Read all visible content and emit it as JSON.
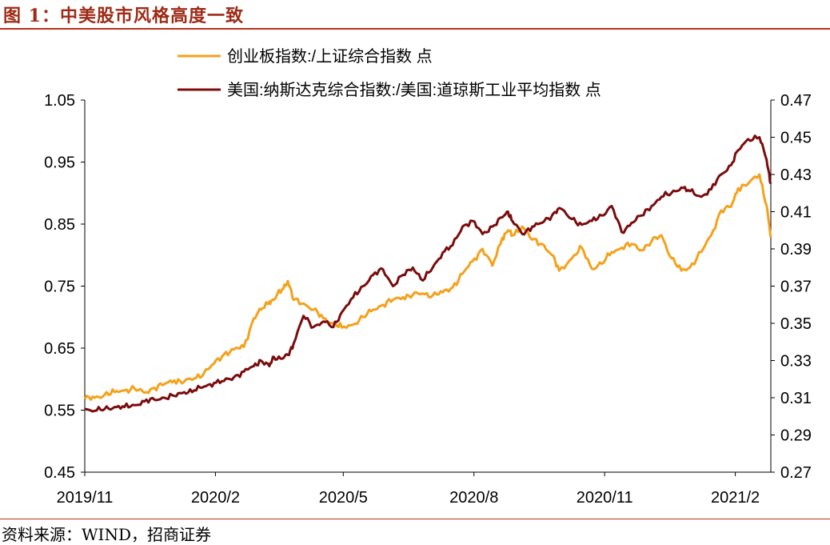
{
  "figure": {
    "title": "图 1：中美股市风格高度一致",
    "source": "资料来源：WIND，招商证券"
  },
  "colors": {
    "series1": "#f5a11b",
    "series2": "#7b0c0c",
    "accent": "#b8321c"
  },
  "chart_data": {
    "type": "line",
    "x_ticks": [
      "2019/11",
      "2020/2",
      "2020/5",
      "2020/8",
      "2020/11",
      "2021/2"
    ],
    "xlim": [
      "2019-11-01",
      "2021-02-26"
    ],
    "left_axis": {
      "ylim": [
        0.45,
        1.05
      ],
      "ticks": [
        "0.45",
        "0.55",
        "0.65",
        "0.75",
        "0.85",
        "0.95",
        "1.05"
      ]
    },
    "right_axis": {
      "ylim": [
        0.27,
        0.47
      ],
      "ticks": [
        "0.27",
        "0.29",
        "0.31",
        "0.33",
        "0.35",
        "0.37",
        "0.39",
        "0.41",
        "0.43",
        "0.45",
        "0.47"
      ]
    },
    "legend_placement": "top-left",
    "grid": false,
    "series": [
      {
        "name": "创业板指数:/上证综合指数 点",
        "axis": "left",
        "points": [
          [
            "2019-11-01",
            0.568
          ],
          [
            "2019-11-08",
            0.57
          ],
          [
            "2019-11-15",
            0.575
          ],
          [
            "2019-11-22",
            0.579
          ],
          [
            "2019-11-29",
            0.582
          ],
          [
            "2019-12-06",
            0.585
          ],
          [
            "2019-12-13",
            0.578
          ],
          [
            "2019-12-20",
            0.586
          ],
          [
            "2019-12-27",
            0.592
          ],
          [
            "2020-01-03",
            0.598
          ],
          [
            "2020-01-10",
            0.596
          ],
          [
            "2020-01-17",
            0.601
          ],
          [
            "2020-01-24",
            0.61
          ],
          [
            "2020-01-31",
            0.625
          ],
          [
            "2020-02-07",
            0.64
          ],
          [
            "2020-02-14",
            0.648
          ],
          [
            "2020-02-21",
            0.652
          ],
          [
            "2020-02-28",
            0.698
          ],
          [
            "2020-03-04",
            0.712
          ],
          [
            "2020-03-10",
            0.725
          ],
          [
            "2020-03-13",
            0.728
          ],
          [
            "2020-03-19",
            0.745
          ],
          [
            "2020-03-23",
            0.758
          ],
          [
            "2020-03-27",
            0.728
          ],
          [
            "2020-04-03",
            0.722
          ],
          [
            "2020-04-10",
            0.712
          ],
          [
            "2020-04-17",
            0.698
          ],
          [
            "2020-04-24",
            0.69
          ],
          [
            "2020-04-30",
            0.683
          ],
          [
            "2020-05-08",
            0.688
          ],
          [
            "2020-05-15",
            0.7
          ],
          [
            "2020-05-22",
            0.712
          ],
          [
            "2020-05-29",
            0.72
          ],
          [
            "2020-06-05",
            0.728
          ],
          [
            "2020-06-12",
            0.732
          ],
          [
            "2020-06-19",
            0.736
          ],
          [
            "2020-06-26",
            0.738
          ],
          [
            "2020-07-03",
            0.735
          ],
          [
            "2020-07-10",
            0.74
          ],
          [
            "2020-07-17",
            0.748
          ],
          [
            "2020-07-24",
            0.77
          ],
          [
            "2020-07-31",
            0.79
          ],
          [
            "2020-08-07",
            0.81
          ],
          [
            "2020-08-14",
            0.783
          ],
          [
            "2020-08-21",
            0.828
          ],
          [
            "2020-08-25",
            0.84
          ],
          [
            "2020-08-28",
            0.832
          ],
          [
            "2020-09-04",
            0.846
          ],
          [
            "2020-09-11",
            0.825
          ],
          [
            "2020-09-18",
            0.818
          ],
          [
            "2020-09-25",
            0.8
          ],
          [
            "2020-09-30",
            0.775
          ],
          [
            "2020-10-09",
            0.795
          ],
          [
            "2020-10-16",
            0.812
          ],
          [
            "2020-10-23",
            0.778
          ],
          [
            "2020-10-30",
            0.786
          ],
          [
            "2020-11-06",
            0.805
          ],
          [
            "2020-11-13",
            0.812
          ],
          [
            "2020-11-20",
            0.818
          ],
          [
            "2020-11-27",
            0.808
          ],
          [
            "2020-12-04",
            0.822
          ],
          [
            "2020-12-11",
            0.832
          ],
          [
            "2020-12-18",
            0.795
          ],
          [
            "2020-12-25",
            0.775
          ],
          [
            "2020-12-31",
            0.78
          ],
          [
            "2021-01-08",
            0.805
          ],
          [
            "2021-01-15",
            0.832
          ],
          [
            "2021-01-22",
            0.872
          ],
          [
            "2021-01-29",
            0.878
          ],
          [
            "2021-02-03",
            0.908
          ],
          [
            "2021-02-10",
            0.915
          ],
          [
            "2021-02-18",
            0.93
          ],
          [
            "2021-02-23",
            0.88
          ],
          [
            "2021-02-26",
            0.828
          ]
        ]
      },
      {
        "name": "美国:纳斯达克综合指数:/美国:道琼斯工业平均指数 点",
        "axis": "right",
        "points": [
          [
            "2019-11-01",
            0.304
          ],
          [
            "2019-11-08",
            0.303
          ],
          [
            "2019-11-15",
            0.304
          ],
          [
            "2019-11-22",
            0.305
          ],
          [
            "2019-11-29",
            0.305
          ],
          [
            "2019-12-06",
            0.306
          ],
          [
            "2019-12-13",
            0.308
          ],
          [
            "2019-12-20",
            0.309
          ],
          [
            "2019-12-27",
            0.31
          ],
          [
            "2020-01-03",
            0.311
          ],
          [
            "2020-01-10",
            0.313
          ],
          [
            "2020-01-17",
            0.314
          ],
          [
            "2020-01-24",
            0.316
          ],
          [
            "2020-01-31",
            0.318
          ],
          [
            "2020-02-07",
            0.319
          ],
          [
            "2020-02-14",
            0.321
          ],
          [
            "2020-02-21",
            0.324
          ],
          [
            "2020-02-28",
            0.327
          ],
          [
            "2020-03-04",
            0.33
          ],
          [
            "2020-03-10",
            0.327
          ],
          [
            "2020-03-13",
            0.332
          ],
          [
            "2020-03-19",
            0.331
          ],
          [
            "2020-03-23",
            0.333
          ],
          [
            "2020-03-27",
            0.339
          ],
          [
            "2020-04-03",
            0.354
          ],
          [
            "2020-04-10",
            0.348
          ],
          [
            "2020-04-17",
            0.351
          ],
          [
            "2020-04-24",
            0.348
          ],
          [
            "2020-04-30",
            0.356
          ],
          [
            "2020-05-08",
            0.364
          ],
          [
            "2020-05-15",
            0.37
          ],
          [
            "2020-05-22",
            0.376
          ],
          [
            "2020-05-29",
            0.379
          ],
          [
            "2020-06-05",
            0.37
          ],
          [
            "2020-06-12",
            0.376
          ],
          [
            "2020-06-19",
            0.38
          ],
          [
            "2020-06-26",
            0.373
          ],
          [
            "2020-07-03",
            0.38
          ],
          [
            "2020-07-10",
            0.388
          ],
          [
            "2020-07-17",
            0.392
          ],
          [
            "2020-07-24",
            0.402
          ],
          [
            "2020-07-31",
            0.405
          ],
          [
            "2020-08-07",
            0.398
          ],
          [
            "2020-08-14",
            0.402
          ],
          [
            "2020-08-21",
            0.407
          ],
          [
            "2020-08-25",
            0.41
          ],
          [
            "2020-08-28",
            0.405
          ],
          [
            "2020-09-04",
            0.398
          ],
          [
            "2020-09-11",
            0.402
          ],
          [
            "2020-09-18",
            0.404
          ],
          [
            "2020-09-25",
            0.408
          ],
          [
            "2020-09-30",
            0.412
          ],
          [
            "2020-10-09",
            0.406
          ],
          [
            "2020-10-16",
            0.403
          ],
          [
            "2020-10-23",
            0.405
          ],
          [
            "2020-10-30",
            0.408
          ],
          [
            "2020-11-06",
            0.413
          ],
          [
            "2020-11-13",
            0.399
          ],
          [
            "2020-11-20",
            0.404
          ],
          [
            "2020-11-27",
            0.408
          ],
          [
            "2020-12-04",
            0.413
          ],
          [
            "2020-12-11",
            0.418
          ],
          [
            "2020-12-18",
            0.42
          ],
          [
            "2020-12-25",
            0.423
          ],
          [
            "2020-12-31",
            0.421
          ],
          [
            "2021-01-08",
            0.418
          ],
          [
            "2021-01-15",
            0.422
          ],
          [
            "2021-01-22",
            0.43
          ],
          [
            "2021-01-29",
            0.435
          ],
          [
            "2021-02-03",
            0.443
          ],
          [
            "2021-02-10",
            0.449
          ],
          [
            "2021-02-18",
            0.45
          ],
          [
            "2021-02-23",
            0.438
          ],
          [
            "2021-02-26",
            0.425
          ]
        ]
      }
    ]
  }
}
